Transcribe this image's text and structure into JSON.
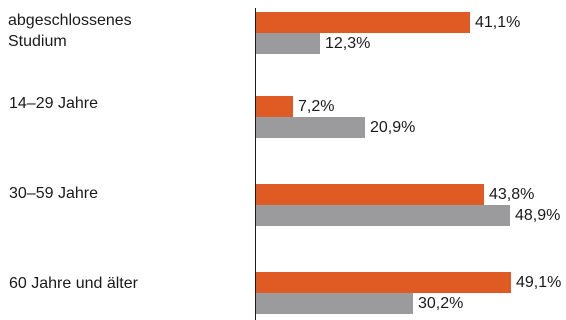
{
  "chart_data": {
    "type": "bar",
    "orientation": "horizontal",
    "categories": [
      "abgeschlossenes\nStudium",
      "14–29 Jahre",
      "30–59 Jahre",
      "60 Jahre und älter"
    ],
    "series": [
      {
        "values": [
          41.1,
          7.2,
          43.8,
          49.1
        ],
        "labels": [
          "41,1%",
          "7,2%",
          "43,8%",
          "49,1%"
        ],
        "color": "#e05a24"
      },
      {
        "values": [
          12.3,
          20.9,
          48.9,
          30.2
        ],
        "labels": [
          "12,3%",
          "20,9%",
          "48,9%",
          "30,2%"
        ],
        "color": "#9b9b9d"
      }
    ],
    "xlim": [
      0,
      60
    ],
    "grid": false,
    "legend": "none"
  }
}
